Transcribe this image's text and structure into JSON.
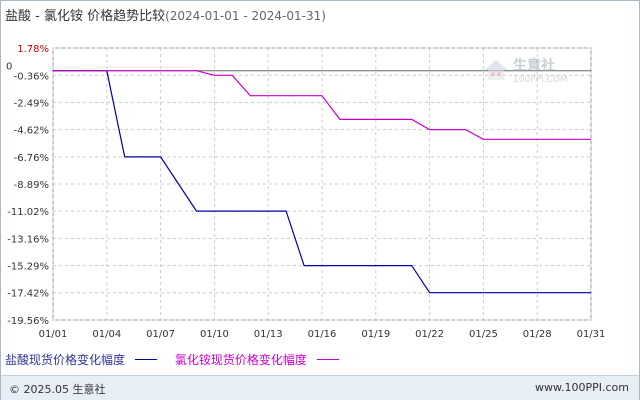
{
  "title": {
    "main": "盐酸 - 氯化铵 价格趋势比较",
    "range": "(2024-01-01 - 2024-01-31)"
  },
  "chart_data": {
    "type": "line",
    "y_ticks": [
      "1.78%",
      "-0.36%",
      "-2.49%",
      "-4.62%",
      "-6.76%",
      "-8.89%",
      "-11.02%",
      "-13.16%",
      "-15.29%",
      "-17.42%",
      "-19.56%"
    ],
    "y_min": -19.56,
    "y_max": 1.78,
    "zero_label": "0",
    "x_ticks": [
      "01/01",
      "01/04",
      "01/07",
      "01/10",
      "01/13",
      "01/16",
      "01/19",
      "01/22",
      "01/25",
      "01/28",
      "01/31"
    ],
    "x_min": 1,
    "x_max": 31,
    "grid": true,
    "legend_position": "bottom",
    "series": [
      {
        "name": "盐酸现货价格变化幅度",
        "color": "#0000aa",
        "points": [
          [
            1,
            0
          ],
          [
            4,
            0
          ],
          [
            5,
            -6.76
          ],
          [
            7,
            -6.76
          ],
          [
            9,
            -11.02
          ],
          [
            14,
            -11.02
          ],
          [
            15,
            -15.29
          ],
          [
            21,
            -15.29
          ],
          [
            22,
            -17.42
          ],
          [
            31,
            -17.42
          ]
        ]
      },
      {
        "name": "氯化铵现货价格变化幅度",
        "color": "#cc00cc",
        "points": [
          [
            1,
            0
          ],
          [
            9,
            0
          ],
          [
            10,
            -0.36
          ],
          [
            11,
            -0.36
          ],
          [
            12,
            -1.96
          ],
          [
            16,
            -1.96
          ],
          [
            17,
            -3.82
          ],
          [
            21,
            -3.82
          ],
          [
            22,
            -4.62
          ],
          [
            24,
            -4.62
          ],
          [
            25,
            -5.38
          ],
          [
            31,
            -5.38
          ]
        ]
      }
    ]
  },
  "footer": {
    "copyright": "© 2025.05 生意社",
    "url": "www.100PPI.com"
  },
  "watermark": {
    "name": "生意社",
    "url": "100PPI.COM"
  }
}
